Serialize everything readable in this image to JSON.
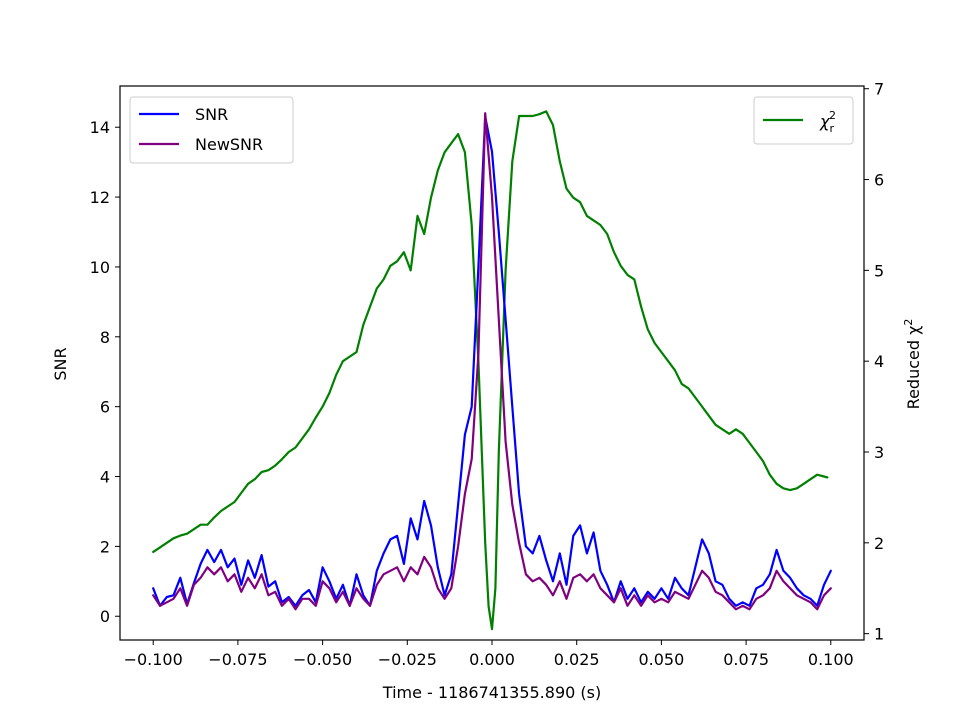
{
  "chart_data": {
    "type": "line",
    "xlabel": "Time - 1186741355.890 (s)",
    "ylabel_left": "SNR",
    "ylabel_right": "Reduced χ",
    "ylabel_right_sup": "2",
    "xlim": [
      -0.1098,
      0.1098
    ],
    "ylim_left": [
      -0.68,
      15.18
    ],
    "ylim_right": [
      0.93,
      7.03
    ],
    "x_ticks": [
      -0.1,
      -0.075,
      -0.05,
      -0.025,
      0.0,
      0.025,
      0.05,
      0.075,
      0.1
    ],
    "x_tick_labels": [
      "−0.100",
      "−0.075",
      "−0.050",
      "−0.025",
      "0.000",
      "0.025",
      "0.050",
      "0.075",
      "0.100"
    ],
    "y_left_ticks": [
      0,
      2,
      4,
      6,
      8,
      10,
      12,
      14
    ],
    "y_left_tick_labels": [
      "0",
      "2",
      "4",
      "6",
      "8",
      "10",
      "12",
      "14"
    ],
    "y_right_ticks": [
      1,
      2,
      3,
      4,
      5,
      6,
      7
    ],
    "y_right_tick_labels": [
      "1",
      "2",
      "3",
      "4",
      "5",
      "6",
      "7"
    ],
    "grid": false,
    "legend_left": {
      "placement": "upper-left",
      "entries": [
        "SNR",
        "NewSNR"
      ]
    },
    "legend_right": {
      "placement": "upper-right",
      "label_base": "χ",
      "label_sub": "r",
      "label_sup": "2"
    },
    "series": [
      {
        "name": "SNR",
        "axis": "left",
        "color": "#0000ff",
        "x": [
          -0.1,
          -0.098,
          -0.096,
          -0.094,
          -0.092,
          -0.09,
          -0.088,
          -0.086,
          -0.084,
          -0.082,
          -0.08,
          -0.078,
          -0.076,
          -0.074,
          -0.072,
          -0.07,
          -0.068,
          -0.066,
          -0.064,
          -0.062,
          -0.06,
          -0.058,
          -0.056,
          -0.054,
          -0.052,
          -0.05,
          -0.048,
          -0.046,
          -0.044,
          -0.042,
          -0.04,
          -0.038,
          -0.036,
          -0.034,
          -0.032,
          -0.03,
          -0.028,
          -0.026,
          -0.024,
          -0.022,
          -0.02,
          -0.018,
          -0.016,
          -0.014,
          -0.012,
          -0.01,
          -0.008,
          -0.006,
          -0.004,
          -0.002,
          0.0,
          0.002,
          0.004,
          0.006,
          0.008,
          0.01,
          0.012,
          0.014,
          0.016,
          0.018,
          0.02,
          0.022,
          0.024,
          0.026,
          0.028,
          0.03,
          0.032,
          0.034,
          0.036,
          0.038,
          0.04,
          0.042,
          0.044,
          0.046,
          0.048,
          0.05,
          0.052,
          0.054,
          0.056,
          0.058,
          0.06,
          0.062,
          0.064,
          0.066,
          0.068,
          0.07,
          0.072,
          0.074,
          0.076,
          0.078,
          0.08,
          0.082,
          0.084,
          0.086,
          0.088,
          0.09,
          0.092,
          0.094,
          0.096,
          0.098,
          0.1
        ],
        "y": [
          0.8,
          0.3,
          0.55,
          0.6,
          1.1,
          0.35,
          0.95,
          1.5,
          1.9,
          1.55,
          1.9,
          1.4,
          1.65,
          0.9,
          1.6,
          1.1,
          1.75,
          0.85,
          1.0,
          0.4,
          0.55,
          0.3,
          0.6,
          0.75,
          0.4,
          1.4,
          1.0,
          0.5,
          0.9,
          0.3,
          1.2,
          0.6,
          0.3,
          1.3,
          1.8,
          2.2,
          2.3,
          1.5,
          2.8,
          2.2,
          3.3,
          2.6,
          1.4,
          0.6,
          1.2,
          3.2,
          5.2,
          6.0,
          10.0,
          14.3,
          13.3,
          11.0,
          8.5,
          6.0,
          3.5,
          2.0,
          1.8,
          2.3,
          1.6,
          1.0,
          1.8,
          0.9,
          2.3,
          2.6,
          1.8,
          2.4,
          1.3,
          0.9,
          0.4,
          1.0,
          0.5,
          0.8,
          0.4,
          0.7,
          0.5,
          0.8,
          0.5,
          1.1,
          0.8,
          0.6,
          1.4,
          2.2,
          1.8,
          1.0,
          0.9,
          0.5,
          0.3,
          0.4,
          0.3,
          0.8,
          0.9,
          1.2,
          1.9,
          1.3,
          1.1,
          0.8,
          0.6,
          0.5,
          0.3,
          0.9,
          1.3
        ]
      },
      {
        "name": "NewSNR",
        "axis": "left",
        "color": "#800080",
        "x": [
          -0.1,
          -0.098,
          -0.096,
          -0.094,
          -0.092,
          -0.09,
          -0.088,
          -0.086,
          -0.084,
          -0.082,
          -0.08,
          -0.078,
          -0.076,
          -0.074,
          -0.072,
          -0.07,
          -0.068,
          -0.066,
          -0.064,
          -0.062,
          -0.06,
          -0.058,
          -0.056,
          -0.054,
          -0.052,
          -0.05,
          -0.048,
          -0.046,
          -0.044,
          -0.042,
          -0.04,
          -0.038,
          -0.036,
          -0.034,
          -0.032,
          -0.03,
          -0.028,
          -0.026,
          -0.024,
          -0.022,
          -0.02,
          -0.018,
          -0.016,
          -0.014,
          -0.012,
          -0.01,
          -0.008,
          -0.006,
          -0.004,
          -0.002,
          0.0,
          0.002,
          0.004,
          0.006,
          0.008,
          0.01,
          0.012,
          0.014,
          0.016,
          0.018,
          0.02,
          0.022,
          0.024,
          0.026,
          0.028,
          0.03,
          0.032,
          0.034,
          0.036,
          0.038,
          0.04,
          0.042,
          0.044,
          0.046,
          0.048,
          0.05,
          0.052,
          0.054,
          0.056,
          0.058,
          0.06,
          0.062,
          0.064,
          0.066,
          0.068,
          0.07,
          0.072,
          0.074,
          0.076,
          0.078,
          0.08,
          0.082,
          0.084,
          0.086,
          0.088,
          0.09,
          0.092,
          0.094,
          0.096,
          0.098,
          0.1
        ],
        "y": [
          0.6,
          0.3,
          0.4,
          0.5,
          0.8,
          0.3,
          0.9,
          1.1,
          1.4,
          1.2,
          1.4,
          1.0,
          1.2,
          0.7,
          1.1,
          0.8,
          1.2,
          0.6,
          0.7,
          0.3,
          0.5,
          0.2,
          0.5,
          0.5,
          0.3,
          1.0,
          0.8,
          0.4,
          0.7,
          0.3,
          0.8,
          0.5,
          0.3,
          0.9,
          1.2,
          1.3,
          1.4,
          1.0,
          1.4,
          1.2,
          1.7,
          1.4,
          0.8,
          0.5,
          0.8,
          2.0,
          3.5,
          4.5,
          7.5,
          14.4,
          12.0,
          8.5,
          5.0,
          3.2,
          2.1,
          1.2,
          1.0,
          1.1,
          0.9,
          0.6,
          1.0,
          0.5,
          1.1,
          1.2,
          1.0,
          1.2,
          0.8,
          0.6,
          0.4,
          0.8,
          0.3,
          0.6,
          0.3,
          0.6,
          0.4,
          0.5,
          0.4,
          0.7,
          0.6,
          0.5,
          0.9,
          1.3,
          1.1,
          0.7,
          0.6,
          0.4,
          0.2,
          0.3,
          0.2,
          0.5,
          0.6,
          0.8,
          1.3,
          1.0,
          0.8,
          0.6,
          0.5,
          0.4,
          0.2,
          0.6,
          0.8
        ]
      },
      {
        "name": "χr²",
        "axis": "right",
        "color": "#008000",
        "x": [
          -0.1,
          -0.098,
          -0.096,
          -0.094,
          -0.092,
          -0.09,
          -0.088,
          -0.086,
          -0.084,
          -0.082,
          -0.08,
          -0.078,
          -0.076,
          -0.074,
          -0.072,
          -0.07,
          -0.068,
          -0.066,
          -0.064,
          -0.062,
          -0.06,
          -0.058,
          -0.056,
          -0.054,
          -0.052,
          -0.05,
          -0.048,
          -0.046,
          -0.044,
          -0.042,
          -0.04,
          -0.038,
          -0.036,
          -0.034,
          -0.032,
          -0.03,
          -0.028,
          -0.026,
          -0.024,
          -0.022,
          -0.02,
          -0.018,
          -0.016,
          -0.014,
          -0.012,
          -0.01,
          -0.008,
          -0.006,
          -0.004,
          -0.002,
          -0.001,
          0.0,
          0.001,
          0.002,
          0.004,
          0.006,
          0.008,
          0.01,
          0.012,
          0.014,
          0.016,
          0.018,
          0.02,
          0.022,
          0.024,
          0.026,
          0.028,
          0.03,
          0.032,
          0.034,
          0.036,
          0.038,
          0.04,
          0.042,
          0.044,
          0.046,
          0.048,
          0.05,
          0.052,
          0.054,
          0.056,
          0.058,
          0.06,
          0.062,
          0.064,
          0.066,
          0.068,
          0.07,
          0.072,
          0.074,
          0.076,
          0.078,
          0.08,
          0.082,
          0.084,
          0.086,
          0.088,
          0.09,
          0.092,
          0.094,
          0.096,
          0.098,
          0.099
        ],
        "y": [
          1.9,
          1.95,
          2.0,
          2.05,
          2.08,
          2.1,
          2.15,
          2.2,
          2.2,
          2.28,
          2.35,
          2.4,
          2.45,
          2.55,
          2.65,
          2.7,
          2.78,
          2.8,
          2.85,
          2.92,
          3.0,
          3.05,
          3.15,
          3.25,
          3.38,
          3.5,
          3.65,
          3.85,
          4.0,
          4.05,
          4.1,
          4.4,
          4.6,
          4.8,
          4.9,
          5.05,
          5.1,
          5.2,
          5.0,
          5.6,
          5.4,
          5.8,
          6.1,
          6.3,
          6.4,
          6.5,
          6.3,
          5.5,
          4.0,
          2.0,
          1.3,
          1.05,
          1.5,
          3.0,
          5.0,
          6.2,
          6.7,
          6.7,
          6.7,
          6.72,
          6.75,
          6.6,
          6.2,
          5.9,
          5.8,
          5.75,
          5.6,
          5.55,
          5.5,
          5.4,
          5.2,
          5.05,
          4.95,
          4.9,
          4.6,
          4.35,
          4.2,
          4.1,
          4.0,
          3.9,
          3.75,
          3.7,
          3.6,
          3.5,
          3.4,
          3.3,
          3.25,
          3.2,
          3.25,
          3.2,
          3.1,
          3.0,
          2.9,
          2.75,
          2.65,
          2.6,
          2.58,
          2.6,
          2.65,
          2.7,
          2.75,
          2.73,
          2.72
        ]
      }
    ]
  }
}
